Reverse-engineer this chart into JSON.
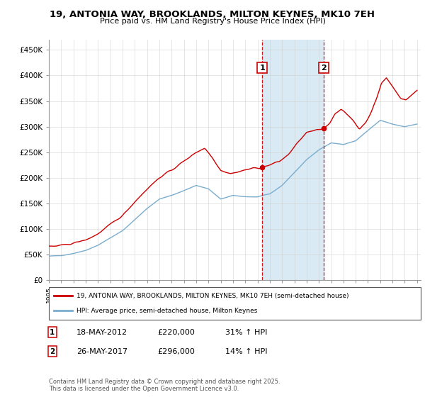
{
  "title": "19, ANTONIA WAY, BROOKLANDS, MILTON KEYNES, MK10 7EH",
  "subtitle": "Price paid vs. HM Land Registry's House Price Index (HPI)",
  "ylim": [
    0,
    470000
  ],
  "yticks": [
    0,
    50000,
    100000,
    150000,
    200000,
    250000,
    300000,
    350000,
    400000,
    450000
  ],
  "ytick_labels": [
    "£0",
    "£50K",
    "£100K",
    "£150K",
    "£200K",
    "£250K",
    "£300K",
    "£350K",
    "£400K",
    "£450K"
  ],
  "purchase1_date": 2012.38,
  "purchase1_price": 220000,
  "purchase2_date": 2017.4,
  "purchase2_price": 296000,
  "red_color": "#cc0000",
  "blue_color": "#7aadcf",
  "shaded_color": "#d9eaf5",
  "annotation1_text": "18-MAY-2012",
  "annotation1_price": "£220,000",
  "annotation1_hpi": "31% ↑ HPI",
  "annotation2_text": "26-MAY-2017",
  "annotation2_price": "£296,000",
  "annotation2_hpi": "14% ↑ HPI",
  "legend1": "19, ANTONIA WAY, BROOKLANDS, MILTON KEYNES, MK10 7EH (semi-detached house)",
  "legend2": "HPI: Average price, semi-detached house, Milton Keynes",
  "footer": "Contains HM Land Registry data © Crown copyright and database right 2025.\nThis data is licensed under the Open Government Licence v3.0.",
  "background_color": "#ffffff",
  "grid_color": "#cccccc"
}
